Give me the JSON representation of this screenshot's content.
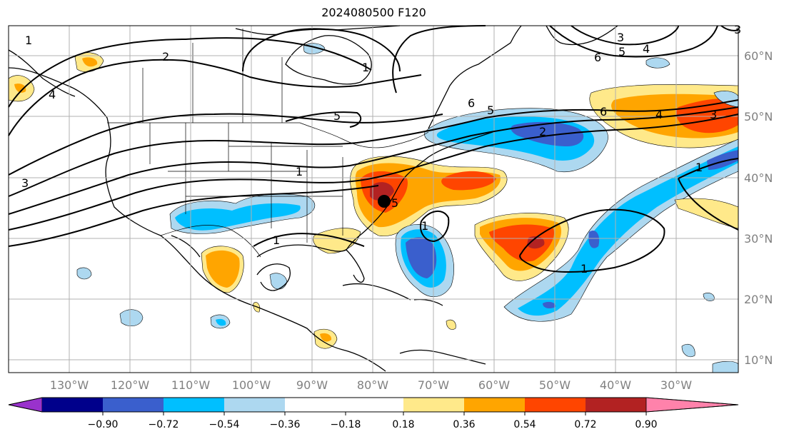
{
  "title": "2024080500 F120",
  "map": {
    "lon_ticks": [
      "130°W",
      "120°W",
      "110°W",
      "100°W",
      "90°W",
      "80°W",
      "70°W",
      "60°W",
      "50°W",
      "40°W",
      "30°W"
    ],
    "lat_ticks": [
      "60°N",
      "50°N",
      "40°N",
      "30°N",
      "20°N",
      "10°N"
    ],
    "contour_labels": [
      "1",
      "2",
      "3",
      "4",
      "5",
      "6",
      "1",
      "1",
      "1",
      "5",
      "5",
      "6",
      "4",
      "3",
      "2",
      "1",
      "1",
      "1",
      "4",
      "3",
      "5",
      "6",
      "3"
    ],
    "grid": true
  },
  "colorbar": {
    "tick_labels": [
      "−0.90",
      "−0.72",
      "−0.54",
      "−0.36",
      "−0.18",
      "0.18",
      "0.36",
      "0.54",
      "0.72",
      "0.90"
    ],
    "colors": [
      "#9932cc",
      "#00008b",
      "#3a5fcd",
      "#00bfff",
      "#add8f0",
      "#ffffff",
      "#ffe98a",
      "#ffa500",
      "#ff4500",
      "#b22222",
      "#ff82ab"
    ]
  },
  "colors": {
    "light_blue": "#add8f0",
    "blue": "#00bfff",
    "royal_blue": "#3a5fcd",
    "yellow": "#ffe98a",
    "orange": "#ffa500",
    "red_orange": "#ff4500",
    "dark_red": "#b22222",
    "contour": "#000000",
    "grid": "#b0b0b0"
  }
}
